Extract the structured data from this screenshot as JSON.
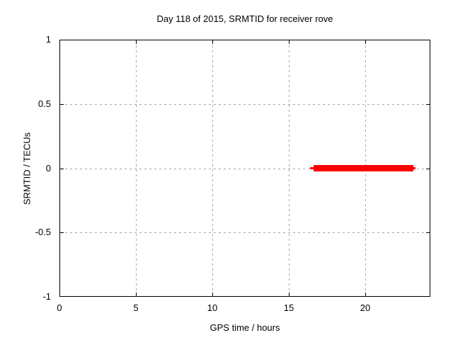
{
  "window": {
    "background": "#ffffff"
  },
  "chart_data": {
    "type": "line",
    "title": "Day 118 of 2015, SRMTID for receiver rove",
    "xlabel": "GPS time / hours",
    "ylabel": "SRMTID / TECUs",
    "xlim": [
      0,
      24.25
    ],
    "ylim": [
      -1,
      1
    ],
    "xticks": {
      "values": [
        0,
        5,
        10,
        15,
        20
      ],
      "labels": [
        "0",
        "5",
        "10",
        "15",
        "20"
      ]
    },
    "yticks": {
      "values": [
        -1,
        -0.5,
        0,
        0.5,
        1
      ],
      "labels": [
        "-1",
        "-0.5",
        "0",
        "0.5",
        "1"
      ]
    },
    "grid": {
      "show": true,
      "color": "#a6a6a6",
      "style": "dashed"
    },
    "border_color": "#000000",
    "background": "#ffffff",
    "legend": "none",
    "series": [
      {
        "name": "SRMTID",
        "color": "#ff0000",
        "shape": "flat horizontal segment at y=0",
        "segments": [
          {
            "x_start": 16.4,
            "x_end": 23.3,
            "y": 0,
            "thickness_px": 3
          },
          {
            "x_start": 16.6,
            "x_end": 23.15,
            "y": 0,
            "thickness_px": 9
          }
        ]
      }
    ]
  }
}
